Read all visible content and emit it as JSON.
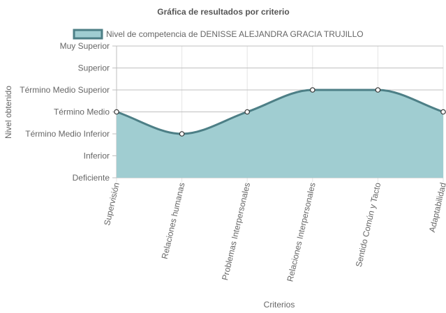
{
  "chart_data": {
    "type": "area",
    "title": "Gráfica de resultados por criterio",
    "xlabel": "Criterios",
    "ylabel": "Nivel obtenido",
    "categories": [
      "Supervisión",
      "Relaciones humanas",
      "Problemas Interpersonales",
      "Relaciones Interpersonales",
      "Sentido Común y Tacto",
      "Adaptabilidad"
    ],
    "y_levels": [
      "Deficiente",
      "Inferior",
      "Término Medio Inferior",
      "Término Medio",
      "Término Medio Superior",
      "Superior",
      "Muy Superior"
    ],
    "ylim": [
      0,
      6
    ],
    "series": [
      {
        "name": "Nivel de competencia de DENISSE ALEJANDRA GRACIA TRUJILLO",
        "values": [
          3,
          2,
          3,
          4,
          4,
          3
        ],
        "color": "#4d7f86",
        "fill": "#a0cdd1"
      }
    ],
    "grid": true,
    "legend_position": "top"
  }
}
